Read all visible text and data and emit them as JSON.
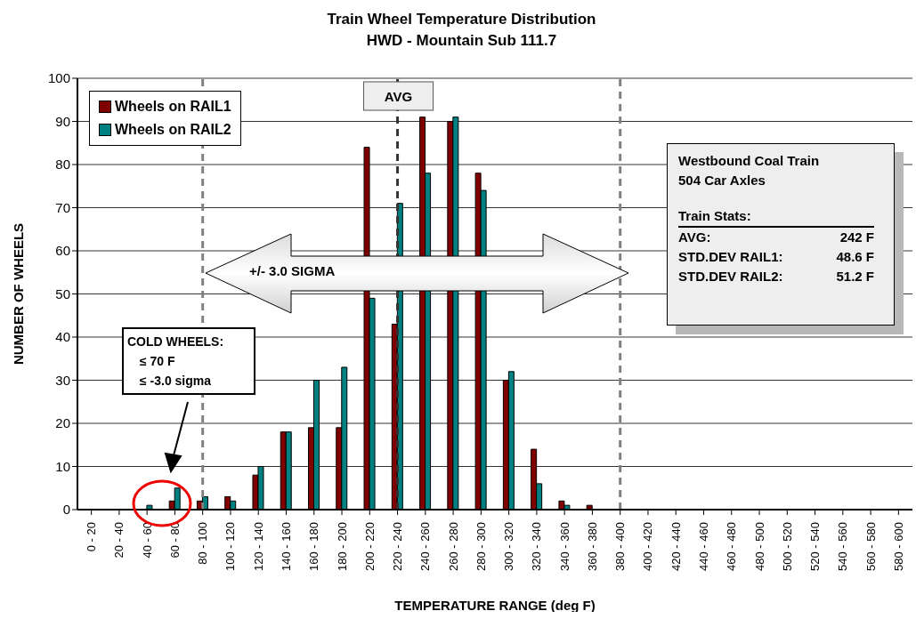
{
  "chart_data": {
    "type": "bar",
    "title": "Train Wheel Temperature Distribution",
    "subtitle": "HWD - Mountain Sub 111.7",
    "xlabel": "TEMPERATURE RANGE (deg F)",
    "ylabel": "NUMBER OF WHEELS",
    "categories": [
      "0 - 20",
      "20 - 40",
      "40 - 60",
      "60 - 80",
      "80 - 100",
      "100 - 120",
      "120 - 140",
      "140 - 160",
      "160 - 180",
      "180 - 200",
      "200 - 220",
      "220 - 240",
      "240 - 260",
      "260 - 280",
      "280 - 300",
      "300 - 320",
      "320 - 340",
      "340 - 360",
      "360 - 380",
      "380 - 400",
      "400 - 420",
      "420 - 440",
      "440 - 460",
      "460 - 480",
      "480 - 500",
      "500 - 520",
      "520 - 540",
      "540 - 560",
      "560 - 580",
      "580 - 600"
    ],
    "series": [
      {
        "name": "Wheels on RAIL1",
        "color": "#800000",
        "values": [
          0,
          0,
          0,
          2,
          2,
          3,
          8,
          18,
          19,
          19,
          84,
          43,
          91,
          90,
          78,
          30,
          14,
          2,
          1,
          0,
          0,
          0,
          0,
          0,
          0,
          0,
          0,
          0,
          0,
          0
        ]
      },
      {
        "name": "Wheels on RAIL2",
        "color": "#008080",
        "values": [
          0,
          0,
          1,
          5,
          3,
          2,
          10,
          18,
          30,
          33,
          49,
          71,
          78,
          91,
          74,
          32,
          6,
          1,
          0,
          0,
          0,
          0,
          0,
          0,
          0,
          0,
          0,
          0,
          0,
          0
        ]
      }
    ],
    "ylim": [
      0,
      100
    ],
    "yticks": [
      0,
      10,
      20,
      30,
      40,
      50,
      60,
      70,
      80,
      90,
      100
    ],
    "grid": "y",
    "legend": "top left",
    "ref_lines": [
      {
        "axis": "x",
        "value": "80 - 100",
        "color": "#808080",
        "line_style": "dashed"
      },
      {
        "axis": "x",
        "value": "220 - 240",
        "label": "AVG",
        "color": "#333333",
        "line_style": "dashed"
      },
      {
        "axis": "x",
        "value": "380 - 400",
        "color": "#808080",
        "line_style": "dashed"
      }
    ],
    "annotations": [
      "+/- 3.0 SIGMA",
      "COLD WHEELS:",
      "≤ 70 F",
      "≤ -3.0 sigma",
      "Westbound Coal Train",
      "504 Car Axles",
      "Train Stats:",
      "AVG: 242 F",
      "STD.DEV RAIL1: 48.6 F",
      "STD.DEV RAIL2: 51.2 F"
    ]
  }
}
